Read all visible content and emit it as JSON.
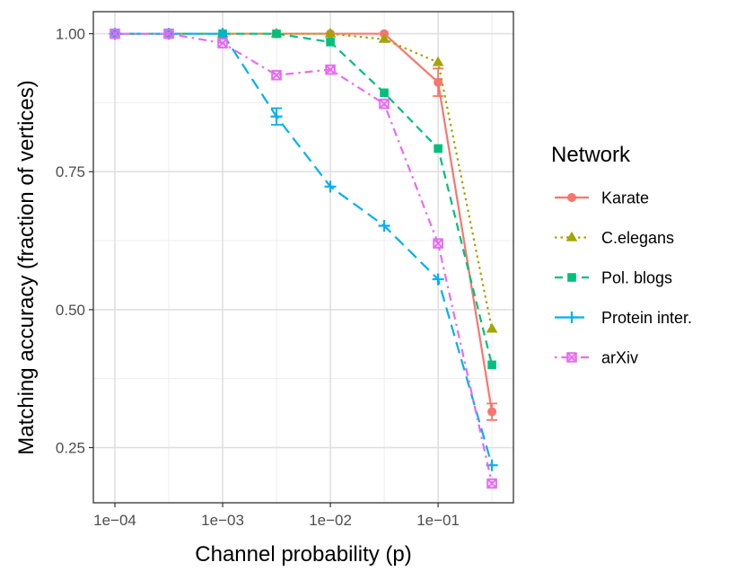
{
  "chart_data": {
    "type": "line",
    "xlabel": "Channel probability (p)",
    "ylabel": "Matching accuracy (fraction of vertices)",
    "x_scale": "log10",
    "xlim": [
      6.31e-05,
      0.5
    ],
    "ylim": [
      0.15,
      1.04
    ],
    "x": [
      0.0001,
      0.000316,
      0.001,
      0.00316,
      0.01,
      0.0316,
      0.1,
      0.316
    ],
    "x_ticks": [
      0.0001,
      0.001,
      0.01,
      0.1
    ],
    "x_tick_labels": [
      "1e−04",
      "1e−03",
      "1e−02",
      "1e−01"
    ],
    "y_ticks": [
      0.25,
      0.5,
      0.75,
      1.0
    ],
    "y_tick_labels": [
      "0.25",
      "0.50",
      "0.75",
      "1.00"
    ],
    "grid": true,
    "legend": {
      "title": "Network",
      "position": "right"
    },
    "series": [
      {
        "name": "Karate",
        "color": "#F8766D",
        "dash": "solid",
        "marker": "circle",
        "values": [
          1.0,
          1.0,
          1.0,
          1.0,
          1.0,
          1.0,
          0.912,
          0.315
        ],
        "errors": [
          0,
          0,
          0,
          0,
          0,
          0,
          0.025,
          0.015
        ]
      },
      {
        "name": "C.elegans",
        "color": "#A3A500",
        "dash": "dotted",
        "marker": "triangle",
        "values": [
          1.0,
          1.0,
          1.0,
          1.0,
          1.0,
          0.99,
          0.948,
          0.465
        ],
        "errors": [
          0,
          0,
          0,
          0,
          0,
          0,
          0,
          0
        ]
      },
      {
        "name": "Pol. blogs",
        "color": "#00BF7D",
        "dash": "dashed",
        "marker": "square",
        "values": [
          1.0,
          1.0,
          1.0,
          1.0,
          0.985,
          0.893,
          0.792,
          0.4
        ],
        "errors": [
          0,
          0,
          0,
          0,
          0,
          0,
          0,
          0
        ]
      },
      {
        "name": "Protein inter.",
        "color": "#00B0F6",
        "dash": "longdash",
        "marker": "plus",
        "values": [
          1.0,
          1.0,
          1.0,
          0.85,
          0.723,
          0.652,
          0.555,
          0.218
        ],
        "errors": [
          0,
          0,
          0,
          0.015,
          0,
          0,
          0,
          0
        ]
      },
      {
        "name": "arXiv",
        "color": "#E76BF3",
        "dash": "dotdash",
        "marker": "boxx",
        "values": [
          1.0,
          1.0,
          0.983,
          0.925,
          0.935,
          0.873,
          0.62,
          0.185
        ],
        "errors": [
          0,
          0,
          0,
          0,
          0,
          0,
          0,
          0
        ]
      }
    ]
  }
}
